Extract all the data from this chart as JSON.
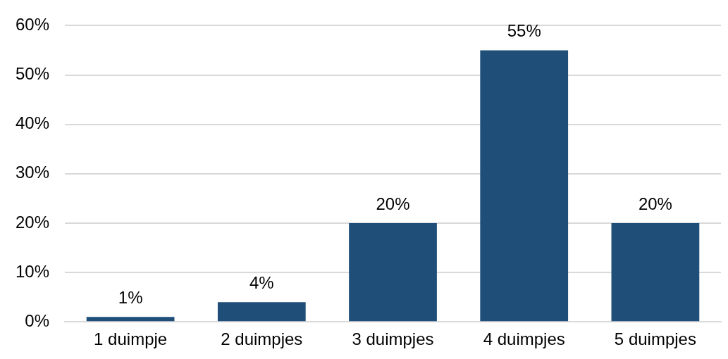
{
  "chart_data": {
    "type": "bar",
    "categories": [
      "1 duimpje",
      "2 duimpjes",
      "3 duimpjes",
      "4 duimpjes",
      "5 duimpjes"
    ],
    "values": [
      1,
      4,
      20,
      55,
      20
    ],
    "value_labels": [
      "1%",
      "4%",
      "20%",
      "55%",
      "20%"
    ],
    "color": "#1f4e79",
    "ylim": [
      0,
      60
    ],
    "yticks": [
      {
        "value": 0,
        "label": "0%"
      },
      {
        "value": 10,
        "label": "10%"
      },
      {
        "value": 20,
        "label": "20%"
      },
      {
        "value": 30,
        "label": "30%"
      },
      {
        "value": 40,
        "label": "40%"
      },
      {
        "value": 50,
        "label": "50%"
      },
      {
        "value": 60,
        "label": "60%"
      }
    ],
    "grid": "y",
    "legend": false
  }
}
